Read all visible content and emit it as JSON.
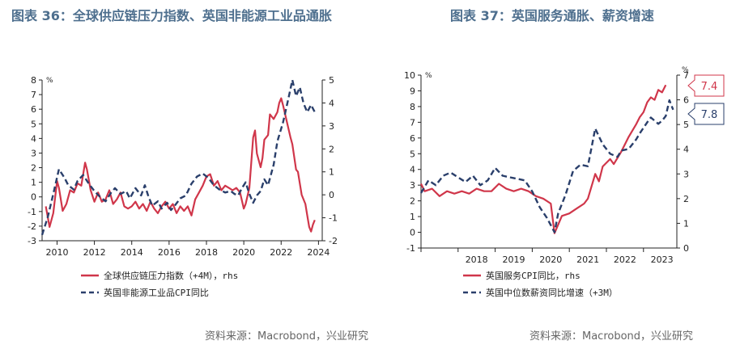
{
  "titles": {
    "left": "图表 36：全球供应链压力指数、英国非能源工业品通胀",
    "right": "图表 37：英国服务通胀、薪资增速"
  },
  "sources": {
    "left": "资料来源：Macrobond，兴业研究",
    "right": "资料来源：Macrobond，兴业研究"
  },
  "colors": {
    "red": "#d0364a",
    "navy": "#2a3f6b",
    "axis": "#222222"
  },
  "chart_data": [
    {
      "type": "line",
      "unit_label_left": "%",
      "x_ticks": [
        "2010",
        "2012",
        "2014",
        "2016",
        "2018",
        "2020",
        "2022",
        "2024"
      ],
      "ylim_left": [
        -3,
        8
      ],
      "yticks_left": [
        -3,
        -2,
        -1,
        0,
        1,
        2,
        3,
        4,
        5,
        6,
        7,
        8
      ],
      "ylim_right": [
        -2,
        5
      ],
      "yticks_right": [
        -2,
        -1,
        0,
        1,
        2,
        3,
        4,
        5
      ],
      "xlim": [
        2009.2,
        2024.2
      ],
      "legend": [
        "全球供应链压力指数（+4M），rhs",
        "英国非能源工业品CPI同比"
      ],
      "series": [
        {
          "name": "全球供应链压力指数（+4M），rhs",
          "axis": "right",
          "style": "solid",
          "points": [
            [
              2009.4,
              -0.5
            ],
            [
              2009.6,
              -1.4
            ],
            [
              2009.8,
              -0.8
            ],
            [
              2010.0,
              0.6
            ],
            [
              2010.1,
              0.3
            ],
            [
              2010.3,
              -0.7
            ],
            [
              2010.5,
              -0.4
            ],
            [
              2010.7,
              0.2
            ],
            [
              2010.9,
              0.1
            ],
            [
              2011.1,
              0.5
            ],
            [
              2011.3,
              0.4
            ],
            [
              2011.5,
              1.4
            ],
            [
              2011.6,
              1.1
            ],
            [
              2011.8,
              0.2
            ],
            [
              2012.0,
              -0.3
            ],
            [
              2012.2,
              0.1
            ],
            [
              2012.4,
              -0.3
            ],
            [
              2012.6,
              -0.2
            ],
            [
              2012.8,
              0.2
            ],
            [
              2013.0,
              -0.4
            ],
            [
              2013.2,
              -0.2
            ],
            [
              2013.4,
              0.1
            ],
            [
              2013.6,
              -0.5
            ],
            [
              2013.8,
              -0.6
            ],
            [
              2014.0,
              -0.5
            ],
            [
              2014.2,
              -0.3
            ],
            [
              2014.4,
              -0.6
            ],
            [
              2014.6,
              -0.4
            ],
            [
              2014.8,
              -0.7
            ],
            [
              2015.0,
              -0.3
            ],
            [
              2015.2,
              -0.6
            ],
            [
              2015.4,
              -0.8
            ],
            [
              2015.6,
              -0.5
            ],
            [
              2015.8,
              -0.3
            ],
            [
              2016.0,
              -0.6
            ],
            [
              2016.2,
              -0.4
            ],
            [
              2016.4,
              -0.8
            ],
            [
              2016.6,
              -0.5
            ],
            [
              2016.8,
              -0.7
            ],
            [
              2017.0,
              -0.5
            ],
            [
              2017.2,
              -0.9
            ],
            [
              2017.4,
              -0.2
            ],
            [
              2017.6,
              0.1
            ],
            [
              2017.8,
              0.4
            ],
            [
              2018.0,
              0.8
            ],
            [
              2018.2,
              0.9
            ],
            [
              2018.4,
              0.4
            ],
            [
              2018.6,
              0.6
            ],
            [
              2018.8,
              0.2
            ],
            [
              2019.0,
              0.4
            ],
            [
              2019.2,
              0.3
            ],
            [
              2019.4,
              0.2
            ],
            [
              2019.6,
              0.3
            ],
            [
              2019.8,
              0.1
            ],
            [
              2020.0,
              -0.6
            ],
            [
              2020.1,
              -0.4
            ],
            [
              2020.3,
              0.3
            ],
            [
              2020.5,
              2.5
            ],
            [
              2020.6,
              2.8
            ],
            [
              2020.7,
              1.8
            ],
            [
              2020.9,
              1.2
            ],
            [
              2021.0,
              1.6
            ],
            [
              2021.1,
              2.4
            ],
            [
              2021.3,
              2.6
            ],
            [
              2021.4,
              3.5
            ],
            [
              2021.6,
              3.3
            ],
            [
              2021.8,
              3.6
            ],
            [
              2021.9,
              4.0
            ],
            [
              2022.0,
              4.2
            ],
            [
              2022.1,
              3.9
            ],
            [
              2022.3,
              3.2
            ],
            [
              2022.5,
              2.5
            ],
            [
              2022.6,
              2.2
            ],
            [
              2022.8,
              1.1
            ],
            [
              2022.9,
              1.0
            ],
            [
              2023.0,
              0.5
            ],
            [
              2023.1,
              0.0
            ],
            [
              2023.3,
              -0.4
            ],
            [
              2023.4,
              -0.9
            ],
            [
              2023.5,
              -1.4
            ],
            [
              2023.6,
              -1.6
            ],
            [
              2023.7,
              -1.3
            ],
            [
              2023.8,
              -1.1
            ]
          ]
        },
        {
          "name": "英国非能源工业品CPI同比",
          "axis": "left",
          "style": "dashed",
          "points": [
            [
              2009.2,
              -2.6
            ],
            [
              2009.5,
              -1.4
            ],
            [
              2009.8,
              0.2
            ],
            [
              2010.1,
              1.9
            ],
            [
              2010.4,
              1.3
            ],
            [
              2010.6,
              0.8
            ],
            [
              2010.9,
              0.5
            ],
            [
              2011.1,
              1.1
            ],
            [
              2011.4,
              1.5
            ],
            [
              2011.7,
              0.9
            ],
            [
              2012.0,
              0.4
            ],
            [
              2012.3,
              0.0
            ],
            [
              2012.6,
              -0.3
            ],
            [
              2012.9,
              0.3
            ],
            [
              2013.1,
              0.6
            ],
            [
              2013.4,
              0.2
            ],
            [
              2013.7,
              0.4
            ],
            [
              2013.9,
              -0.1
            ],
            [
              2014.2,
              0.6
            ],
            [
              2014.5,
              0.1
            ],
            [
              2014.7,
              0.8
            ],
            [
              2014.9,
              0.0
            ],
            [
              2015.1,
              -0.6
            ],
            [
              2015.4,
              -0.3
            ],
            [
              2015.6,
              -0.8
            ],
            [
              2015.9,
              -0.4
            ],
            [
              2016.1,
              -0.9
            ],
            [
              2016.3,
              -0.6
            ],
            [
              2016.6,
              -0.1
            ],
            [
              2016.9,
              0.1
            ],
            [
              2017.2,
              0.9
            ],
            [
              2017.5,
              1.4
            ],
            [
              2017.8,
              1.6
            ],
            [
              2018.1,
              1.3
            ],
            [
              2018.4,
              0.8
            ],
            [
              2018.7,
              0.5
            ],
            [
              2019.0,
              0.3
            ],
            [
              2019.3,
              0.4
            ],
            [
              2019.5,
              0.2
            ],
            [
              2019.7,
              0.1
            ],
            [
              2019.9,
              0.6
            ],
            [
              2020.1,
              1.0
            ],
            [
              2020.3,
              0.2
            ],
            [
              2020.5,
              -0.4
            ],
            [
              2020.7,
              0.1
            ],
            [
              2020.9,
              0.4
            ],
            [
              2021.1,
              1.2
            ],
            [
              2021.3,
              0.8
            ],
            [
              2021.6,
              2.2
            ],
            [
              2021.8,
              3.8
            ],
            [
              2022.1,
              5.1
            ],
            [
              2022.4,
              6.8
            ],
            [
              2022.6,
              8.0
            ],
            [
              2022.8,
              6.9
            ],
            [
              2023.0,
              7.5
            ],
            [
              2023.2,
              6.4
            ],
            [
              2023.4,
              5.8
            ],
            [
              2023.6,
              6.3
            ],
            [
              2023.8,
              5.8
            ]
          ]
        }
      ]
    },
    {
      "type": "line",
      "unit_label_left": "%",
      "unit_label_right": "%",
      "x_ticks": [
        "2018",
        "2019",
        "2020",
        "2021",
        "2022",
        "2023"
      ],
      "ylim_left": [
        -1,
        10
      ],
      "yticks_left": [
        -1,
        0,
        1,
        2,
        3,
        4,
        5,
        6,
        7,
        8,
        9,
        10
      ],
      "ylim_right": [
        0,
        7
      ],
      "yticks_right": [
        0,
        1,
        2,
        3,
        4,
        5,
        6,
        7
      ],
      "xlim": [
        2017.0,
        2023.9
      ],
      "legend": [
        "英国服务CPI同比，rhs",
        "英国中位数薪资同比增速（+3M）"
      ],
      "callouts": [
        "7.4",
        "7.8"
      ],
      "series": [
        {
          "name": "英国服务CPI同比，rhs",
          "axis": "right",
          "style": "solid",
          "points": [
            [
              2017.0,
              2.6
            ],
            [
              2017.1,
              2.3
            ],
            [
              2017.3,
              2.4
            ],
            [
              2017.5,
              2.1
            ],
            [
              2017.7,
              2.3
            ],
            [
              2017.9,
              2.2
            ],
            [
              2018.1,
              2.3
            ],
            [
              2018.3,
              2.2
            ],
            [
              2018.5,
              2.4
            ],
            [
              2018.7,
              2.3
            ],
            [
              2018.9,
              2.3
            ],
            [
              2019.1,
              2.6
            ],
            [
              2019.3,
              2.4
            ],
            [
              2019.5,
              2.3
            ],
            [
              2019.7,
              2.4
            ],
            [
              2019.9,
              2.3
            ],
            [
              2020.1,
              2.1
            ],
            [
              2020.3,
              2.0
            ],
            [
              2020.5,
              1.8
            ],
            [
              2020.6,
              0.6
            ],
            [
              2020.8,
              1.3
            ],
            [
              2021.0,
              1.4
            ],
            [
              2021.2,
              1.6
            ],
            [
              2021.4,
              1.8
            ],
            [
              2021.5,
              2.0
            ],
            [
              2021.7,
              3.0
            ],
            [
              2021.8,
              2.7
            ],
            [
              2021.9,
              3.3
            ],
            [
              2022.1,
              3.6
            ],
            [
              2022.2,
              3.4
            ],
            [
              2022.4,
              3.9
            ],
            [
              2022.5,
              4.2
            ],
            [
              2022.6,
              4.5
            ],
            [
              2022.8,
              5.0
            ],
            [
              2022.9,
              5.3
            ],
            [
              2023.0,
              5.5
            ],
            [
              2023.1,
              5.9
            ],
            [
              2023.2,
              6.1
            ],
            [
              2023.3,
              6.0
            ],
            [
              2023.4,
              6.4
            ],
            [
              2023.5,
              6.3
            ],
            [
              2023.6,
              6.6
            ]
          ]
        },
        {
          "name": "英国中位数薪资同比增速（+3M）",
          "axis": "left",
          "style": "dashed",
          "points": [
            [
              2017.0,
              2.5
            ],
            [
              2017.2,
              3.3
            ],
            [
              2017.4,
              3.0
            ],
            [
              2017.6,
              3.6
            ],
            [
              2017.8,
              3.8
            ],
            [
              2018.0,
              3.5
            ],
            [
              2018.2,
              3.2
            ],
            [
              2018.4,
              3.6
            ],
            [
              2018.6,
              3.0
            ],
            [
              2018.8,
              3.3
            ],
            [
              2019.0,
              4.1
            ],
            [
              2019.2,
              3.6
            ],
            [
              2019.4,
              3.5
            ],
            [
              2019.6,
              3.4
            ],
            [
              2019.8,
              3.3
            ],
            [
              2020.0,
              2.6
            ],
            [
              2020.2,
              1.6
            ],
            [
              2020.4,
              0.9
            ],
            [
              2020.6,
              0.0
            ],
            [
              2020.7,
              1.2
            ],
            [
              2020.9,
              2.4
            ],
            [
              2021.1,
              3.9
            ],
            [
              2021.3,
              4.3
            ],
            [
              2021.5,
              4.2
            ],
            [
              2021.7,
              6.6
            ],
            [
              2021.9,
              5.6
            ],
            [
              2022.1,
              5.0
            ],
            [
              2022.3,
              4.8
            ],
            [
              2022.4,
              5.2
            ],
            [
              2022.6,
              5.3
            ],
            [
              2022.8,
              5.9
            ],
            [
              2022.9,
              6.3
            ],
            [
              2023.1,
              7.0
            ],
            [
              2023.2,
              7.3
            ],
            [
              2023.4,
              6.9
            ],
            [
              2023.5,
              7.1
            ],
            [
              2023.6,
              7.4
            ],
            [
              2023.7,
              8.4
            ],
            [
              2023.8,
              7.8
            ]
          ]
        }
      ]
    }
  ]
}
